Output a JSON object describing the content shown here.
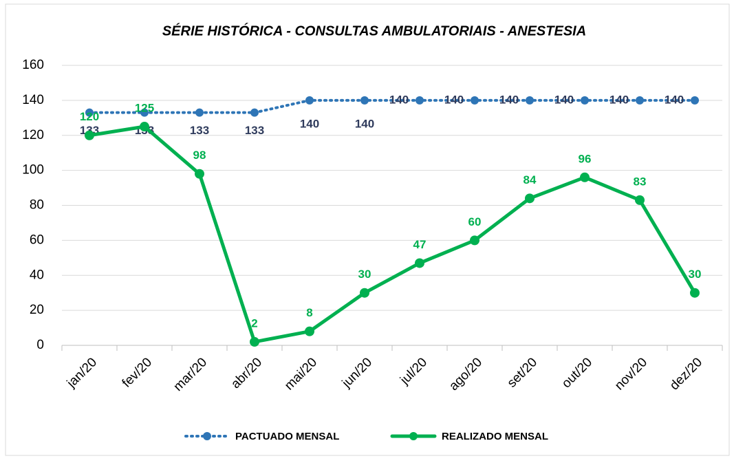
{
  "chart_data": {
    "type": "line",
    "title": "SÉRIE HISTÓRICA - CONSULTAS AMBULATORIAIS - ANESTESIA",
    "categories": [
      "jan/20",
      "fev/20",
      "mar/20",
      "abr/20",
      "mai/20",
      "jun/20",
      "jul/20",
      "ago/20",
      "set/20",
      "out/20",
      "nov/20",
      "dez/20"
    ],
    "series": [
      {
        "name": "PACTUADO MENSAL",
        "color": "#2e75b6",
        "label_color": "#2f3b5c",
        "style": "dotted",
        "values": [
          133,
          133,
          133,
          133,
          140,
          140,
          140,
          140,
          140,
          140,
          140,
          140
        ]
      },
      {
        "name": "REALIZADO MENSAL",
        "color": "#00b050",
        "label_color": "#00b050",
        "style": "solid",
        "values": [
          120,
          125,
          98,
          2,
          8,
          30,
          47,
          60,
          84,
          96,
          83,
          30
        ]
      }
    ],
    "ylim": [
      0,
      160
    ],
    "yticks": [
      0,
      20,
      40,
      60,
      80,
      100,
      120,
      140,
      160
    ],
    "grid": true,
    "legend": "bottom"
  }
}
